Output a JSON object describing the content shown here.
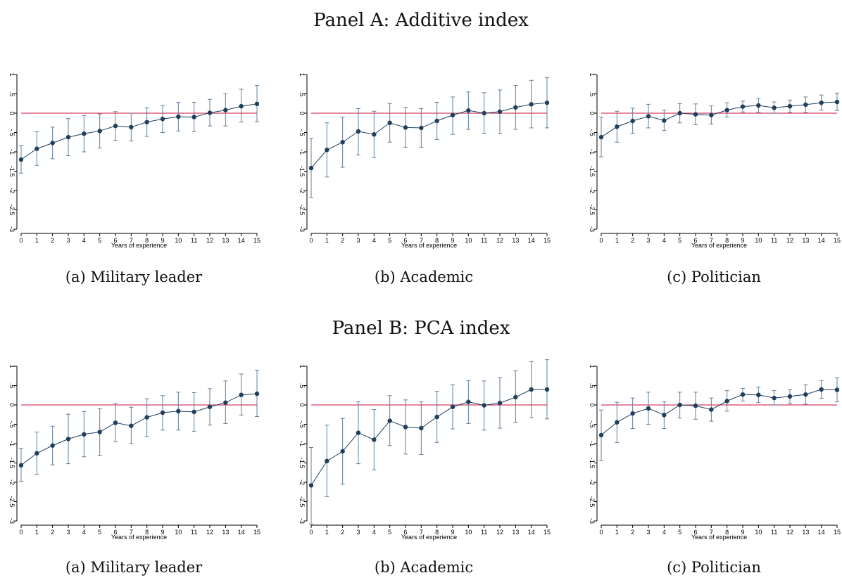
{
  "panels": [
    {
      "title": "Panel A: Additive index"
    },
    {
      "title": "Panel B: PCA index"
    }
  ],
  "chart_data": [
    {
      "type": "line",
      "panel": "Panel A: Additive index",
      "caption": "(a) Military leader",
      "xlabel": "Years of experience",
      "ylabel": "",
      "x": [
        0,
        1,
        2,
        3,
        4,
        5,
        6,
        7,
        8,
        9,
        10,
        11,
        12,
        13,
        14,
        15
      ],
      "y_ticks": [
        "1",
        ".5",
        "0",
        "-.5",
        "-1",
        "-1.5",
        "-2",
        "-2.5",
        "-3"
      ],
      "ylim": [
        -3,
        1
      ],
      "xlim": [
        0,
        15
      ],
      "reference_line": 0,
      "error_bars": true,
      "values": [
        -1.2,
        -0.92,
        -0.77,
        -0.62,
        -0.53,
        -0.46,
        -0.33,
        -0.36,
        -0.23,
        -0.15,
        -0.09,
        -0.1,
        0.01,
        0.08,
        0.18,
        0.24
      ],
      "lower": [
        -1.55,
        -1.35,
        -1.18,
        -1.1,
        -1.0,
        -0.9,
        -0.7,
        -0.72,
        -0.6,
        -0.5,
        -0.46,
        -0.48,
        -0.33,
        -0.33,
        -0.23,
        -0.22
      ],
      "upper": [
        -0.83,
        -0.48,
        -0.36,
        -0.14,
        -0.06,
        -0.02,
        0.04,
        0.0,
        0.14,
        0.2,
        0.28,
        0.28,
        0.36,
        0.5,
        0.62,
        0.72
      ],
      "colors": {
        "line": "#1f3f5f",
        "marker": "#1f3f5f",
        "ci": "#5f7f9f",
        "refline": "#d63d5e"
      }
    },
    {
      "type": "line",
      "panel": "Panel A: Additive index",
      "caption": "(b) Academic",
      "xlabel": "Years of experience",
      "ylabel": "",
      "x": [
        0,
        1,
        2,
        3,
        4,
        5,
        6,
        7,
        8,
        9,
        10,
        11,
        12,
        13,
        14,
        15
      ],
      "y_ticks": [
        "1",
        ".5",
        "0",
        "-.5",
        "-1",
        "-1.5",
        "-2",
        "-2.5",
        "-3"
      ],
      "ylim": [
        -3,
        1
      ],
      "xlim": [
        0,
        15
      ],
      "reference_line": 0,
      "error_bars": true,
      "values": [
        -1.42,
        -0.95,
        -0.75,
        -0.47,
        -0.55,
        -0.25,
        -0.37,
        -0.38,
        -0.2,
        -0.05,
        0.07,
        0.0,
        0.04,
        0.15,
        0.23,
        0.27
      ],
      "lower": [
        -2.18,
        -1.65,
        -1.4,
        -1.08,
        -1.15,
        -0.75,
        -0.88,
        -0.88,
        -0.68,
        -0.55,
        -0.42,
        -0.52,
        -0.52,
        -0.42,
        -0.38,
        -0.38
      ],
      "upper": [
        -0.65,
        -0.25,
        -0.1,
        0.12,
        0.05,
        0.25,
        0.15,
        0.12,
        0.28,
        0.42,
        0.55,
        0.53,
        0.6,
        0.72,
        0.85,
        0.92
      ],
      "colors": {
        "line": "#1f3f5f",
        "marker": "#1f3f5f",
        "ci": "#5f7f9f",
        "refline": "#d63d5e"
      }
    },
    {
      "type": "line",
      "panel": "Panel A: Additive index",
      "caption": "(c) Politician",
      "xlabel": "Years of experience",
      "ylabel": "",
      "x": [
        0,
        1,
        2,
        3,
        4,
        5,
        6,
        7,
        8,
        9,
        10,
        11,
        12,
        13,
        14,
        15
      ],
      "y_ticks": [
        "1",
        ".5",
        "0",
        "-.5",
        "-1",
        "-1.5",
        "-2",
        "-2.5",
        "-3"
      ],
      "ylim": [
        -3,
        1
      ],
      "xlim": [
        0,
        15
      ],
      "reference_line": 0,
      "error_bars": true,
      "values": [
        -0.62,
        -0.35,
        -0.2,
        -0.08,
        -0.19,
        0.0,
        -0.03,
        -0.05,
        0.08,
        0.17,
        0.2,
        0.14,
        0.18,
        0.22,
        0.27,
        0.29
      ],
      "lower": [
        -1.13,
        -0.75,
        -0.52,
        -0.38,
        -0.45,
        -0.25,
        -0.3,
        -0.28,
        -0.1,
        0.03,
        0.02,
        0.0,
        0.02,
        0.02,
        0.08,
        0.07
      ],
      "upper": [
        -0.1,
        0.05,
        0.13,
        0.23,
        0.08,
        0.25,
        0.24,
        0.19,
        0.27,
        0.31,
        0.38,
        0.29,
        0.34,
        0.42,
        0.47,
        0.52
      ],
      "colors": {
        "line": "#1f3f5f",
        "marker": "#1f3f5f",
        "ci": "#5f7f9f",
        "refline": "#d63d5e"
      }
    },
    {
      "type": "line",
      "panel": "Panel B: PCA index",
      "caption": "(a) Military leader",
      "xlabel": "Years of experience",
      "ylabel": "",
      "x": [
        0,
        1,
        2,
        3,
        4,
        5,
        6,
        7,
        8,
        9,
        10,
        11,
        12,
        13,
        14,
        15
      ],
      "y_ticks": [
        "1",
        ".5",
        "0",
        "-.5",
        "-1",
        "-1.5",
        "-2",
        "-2.5",
        "-3"
      ],
      "ylim": [
        -3,
        1
      ],
      "xlim": [
        0,
        15
      ],
      "reference_line": 0,
      "error_bars": true,
      "values": [
        -1.56,
        -1.25,
        -1.05,
        -0.88,
        -0.76,
        -0.7,
        -0.46,
        -0.54,
        -0.32,
        -0.2,
        -0.16,
        -0.18,
        -0.05,
        0.06,
        0.26,
        0.29
      ],
      "lower": [
        -1.98,
        -1.8,
        -1.55,
        -1.52,
        -1.34,
        -1.3,
        -0.95,
        -1.0,
        -0.82,
        -0.65,
        -0.65,
        -0.68,
        -0.52,
        -0.48,
        -0.26,
        -0.3
      ],
      "upper": [
        -1.12,
        -0.7,
        -0.55,
        -0.24,
        -0.17,
        -0.1,
        0.04,
        -0.06,
        0.16,
        0.24,
        0.33,
        0.32,
        0.42,
        0.62,
        0.8,
        0.9
      ],
      "colors": {
        "line": "#1f3f5f",
        "marker": "#1f3f5f",
        "ci": "#5f7f9f",
        "refline": "#d63d5e"
      }
    },
    {
      "type": "line",
      "panel": "Panel B: PCA index",
      "caption": "(b) Academic",
      "xlabel": "Years of experience",
      "ylabel": "",
      "x": [
        0,
        1,
        2,
        3,
        4,
        5,
        6,
        7,
        8,
        9,
        10,
        11,
        12,
        13,
        14,
        15
      ],
      "y_ticks": [
        "1",
        ".5",
        "0",
        "-.5",
        "-1",
        "-1.5",
        "-2",
        "-2.5",
        "-3"
      ],
      "ylim": [
        -3,
        1
      ],
      "xlim": [
        0,
        15
      ],
      "reference_line": 0,
      "error_bars": true,
      "values": [
        -2.08,
        -1.45,
        -1.2,
        -0.72,
        -0.9,
        -0.41,
        -0.57,
        -0.6,
        -0.31,
        -0.05,
        0.08,
        -0.01,
        0.05,
        0.2,
        0.4,
        0.4
      ],
      "lower": [
        -3.08,
        -2.37,
        -2.05,
        -1.52,
        -1.68,
        -1.05,
        -1.27,
        -1.28,
        -0.97,
        -0.62,
        -0.48,
        -0.65,
        -0.6,
        -0.45,
        -0.33,
        -0.36
      ],
      "upper": [
        -1.1,
        -0.52,
        -0.35,
        0.08,
        -0.12,
        0.24,
        0.13,
        0.08,
        0.35,
        0.52,
        0.63,
        0.62,
        0.7,
        0.88,
        1.12,
        1.17
      ],
      "colors": {
        "line": "#1f3f5f",
        "marker": "#1f3f5f",
        "ci": "#5f7f9f",
        "refline": "#d63d5e"
      }
    },
    {
      "type": "line",
      "panel": "Panel B: PCA index",
      "caption": "(c) Politician",
      "xlabel": "Years of experience",
      "ylabel": "",
      "x": [
        0,
        1,
        2,
        3,
        4,
        5,
        6,
        7,
        8,
        9,
        10,
        11,
        12,
        13,
        14,
        15
      ],
      "y_ticks": [
        "1",
        ".5",
        "0",
        "-.5",
        "-1",
        "-1.5",
        "-2",
        "-2.5",
        "-3"
      ],
      "ylim": [
        -3,
        1
      ],
      "xlim": [
        0,
        15
      ],
      "reference_line": 0,
      "error_bars": true,
      "values": [
        -0.78,
        -0.45,
        -0.22,
        -0.09,
        -0.26,
        0.0,
        -0.02,
        -0.12,
        0.1,
        0.27,
        0.26,
        0.18,
        0.22,
        0.27,
        0.4,
        0.39
      ],
      "lower": [
        -1.44,
        -0.97,
        -0.61,
        -0.5,
        -0.61,
        -0.34,
        -0.37,
        -0.42,
        -0.16,
        0.1,
        0.06,
        0.0,
        0.03,
        0.02,
        0.17,
        0.08
      ],
      "upper": [
        -0.13,
        0.07,
        0.18,
        0.33,
        0.08,
        0.33,
        0.33,
        0.18,
        0.37,
        0.43,
        0.46,
        0.37,
        0.4,
        0.52,
        0.63,
        0.7
      ],
      "colors": {
        "line": "#1f3f5f",
        "marker": "#1f3f5f",
        "ci": "#5f7f9f",
        "refline": "#d63d5e"
      }
    }
  ]
}
